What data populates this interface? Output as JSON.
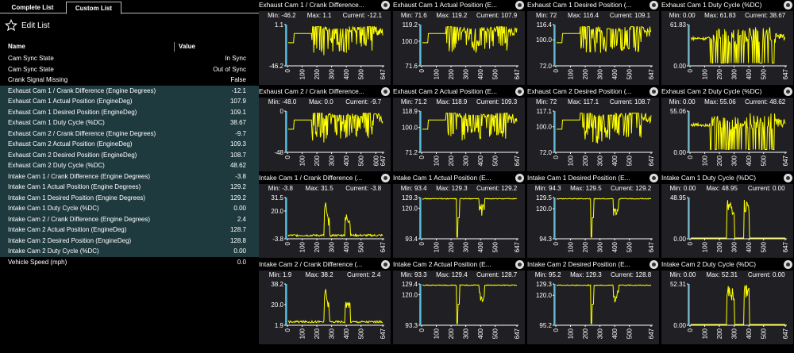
{
  "tabs": {
    "complete": "Complete List",
    "custom": "Custom List"
  },
  "edit_label": "Edit List",
  "columns": {
    "name": "Name",
    "value": "Value"
  },
  "rows": [
    {
      "name": "Cam Sync State",
      "value": "In Sync",
      "sel": false
    },
    {
      "name": "Cam Sync State",
      "value": "Out of Sync",
      "sel": false
    },
    {
      "name": "Crank Signal Missing",
      "value": "False",
      "sel": false
    },
    {
      "name": "Exhaust Cam 1 / Crank Difference (Engine Degrees)",
      "value": "-12.1",
      "sel": true
    },
    {
      "name": "Exhaust Cam 1 Actual Position (EngineDeg)",
      "value": "107.9",
      "sel": true
    },
    {
      "name": "Exhaust Cam 1 Desired Position (EngineDeg)",
      "value": "109.1",
      "sel": true
    },
    {
      "name": "Exhaust Cam 1 Duty Cycle (%DC)",
      "value": "38.67",
      "sel": true
    },
    {
      "name": "Exhaust Cam 2 / Crank Difference (Engine Degrees)",
      "value": "-9.7",
      "sel": true
    },
    {
      "name": "Exhaust Cam 2 Actual Position (EngineDeg)",
      "value": "109.3",
      "sel": true
    },
    {
      "name": "Exhaust Cam 2 Desired Position (EngineDeg)",
      "value": "108.7",
      "sel": true
    },
    {
      "name": "Exhaust Cam 2 Duty Cycle (%DC)",
      "value": "48.62",
      "sel": true
    },
    {
      "name": "Intake Cam 1 / Crank Difference (Engine Degrees)",
      "value": "-3.8",
      "sel": true
    },
    {
      "name": "Intake Cam 1 Actual Position (Engine Degrees)",
      "value": "129.2",
      "sel": true
    },
    {
      "name": "Intake Cam 1 Desired Position (Engine Degrees)",
      "value": "129.2",
      "sel": true
    },
    {
      "name": "Intake Cam 1 Duty Cycle (%DC)",
      "value": "0.00",
      "sel": true
    },
    {
      "name": "Intake Cam 2 / Crank Difference (Engine Degrees)",
      "value": "2.4",
      "sel": true
    },
    {
      "name": "Intake Cam 2 Actual Position (EngineDeg)",
      "value": "128.7",
      "sel": true
    },
    {
      "name": "Intake Cam 2 Desired Position (EngineDeg)",
      "value": "128.8",
      "sel": true
    },
    {
      "name": "Intake Cam 2 Duty Cycle (%DC)",
      "value": "0.00",
      "sel": true
    },
    {
      "name": "Vehicle Speed (mph)",
      "value": "0.0",
      "sel": false
    }
  ],
  "colors": {
    "trace": "#ffff00",
    "cursor": "#2aa6c8",
    "selected_row": "#1f3a3e",
    "plot_bg": "#202024"
  },
  "chart_data": [
    {
      "type": "line",
      "title": "Exhaust Cam 1 / Crank Difference...",
      "min": "-46.2",
      "max": "1.1",
      "current": "-12.1",
      "ylim": [
        -46.2,
        1.1
      ],
      "yticks": [
        "1.1",
        "-46.2"
      ],
      "yvals": [
        1.1,
        -46.2
      ],
      "xticks": [
        "0",
        "100",
        "200",
        "300",
        "400",
        "500",
        "647"
      ],
      "pattern": "exh_diff"
    },
    {
      "type": "line",
      "title": "Exhaust Cam 1 Actual Position (E...",
      "min": "71.6",
      "max": "119.2",
      "current": "107.9",
      "ylim": [
        71.6,
        119.2
      ],
      "yticks": [
        "119.2",
        "100.0",
        "71.6"
      ],
      "yvals": [
        119.2,
        100.0,
        71.6
      ],
      "xticks": [
        "0",
        "100",
        "200",
        "300",
        "400",
        "500",
        "647"
      ],
      "pattern": "exh_pos"
    },
    {
      "type": "line",
      "title": "Exhaust Cam 1 Desired Position (...",
      "min": "72",
      "max": "116.4",
      "current": "109.1",
      "ylim": [
        72,
        116.4
      ],
      "yticks": [
        "116.4",
        "100.0",
        "72.0"
      ],
      "yvals": [
        116.4,
        100.0,
        72.0
      ],
      "xticks": [
        "0",
        "100",
        "200",
        "300",
        "400",
        "500",
        "647"
      ],
      "pattern": "exh_pos"
    },
    {
      "type": "line",
      "title": "Exhaust Cam 1 Duty Cycle (%DC)",
      "min": "0.00",
      "max": "61.83",
      "current": "38.67",
      "ylim": [
        0,
        61.83
      ],
      "yticks": [
        "61.83",
        "0.00"
      ],
      "yvals": [
        61.83,
        0
      ],
      "xticks": [
        "0",
        "100",
        "200",
        "300",
        "400",
        "500",
        "647"
      ],
      "pattern": "exh_duty"
    },
    {
      "type": "line",
      "title": "Exhaust Cam 2 / Crank Difference...",
      "min": "-48.0",
      "max": "0.0",
      "current": "-9.7",
      "ylim": [
        -48.0,
        0.0
      ],
      "yticks": [
        "0",
        "-48"
      ],
      "yvals": [
        0,
        -48
      ],
      "xticks": [
        "0",
        "100",
        "200",
        "300",
        "400",
        "500",
        "600",
        "647"
      ],
      "pattern": "exh_diff"
    },
    {
      "type": "line",
      "title": "Exhaust Cam 2 Actual Position (E...",
      "min": "71.2",
      "max": "118.9",
      "current": "109.3",
      "ylim": [
        71.2,
        118.9
      ],
      "yticks": [
        "118.9",
        "100.0",
        "71.2"
      ],
      "yvals": [
        118.9,
        100.0,
        71.2
      ],
      "xticks": [
        "0",
        "100",
        "200",
        "300",
        "400",
        "500",
        "647"
      ],
      "pattern": "exh_pos"
    },
    {
      "type": "line",
      "title": "Exhaust Cam 2 Desired Position (...",
      "min": "72",
      "max": "117.1",
      "current": "108.7",
      "ylim": [
        72,
        117.1
      ],
      "yticks": [
        "117.1",
        "100.0",
        "72.0"
      ],
      "yvals": [
        117.1,
        100.0,
        72.0
      ],
      "xticks": [
        "0",
        "100",
        "200",
        "300",
        "400",
        "500",
        "647"
      ],
      "pattern": "exh_pos"
    },
    {
      "type": "line",
      "title": "Exhaust Cam 2 Duty Cycle (%DC)",
      "min": "0.00",
      "max": "55.06",
      "current": "48.62",
      "ylim": [
        0,
        55.06
      ],
      "yticks": [
        "55.06",
        "0.00"
      ],
      "yvals": [
        55.06,
        0
      ],
      "xticks": [
        "0",
        "100",
        "200",
        "300",
        "400",
        "500",
        "647"
      ],
      "pattern": "exh_duty"
    },
    {
      "type": "line",
      "title": "Intake Cam 1 / Crank Difference (...",
      "min": "-3.8",
      "max": "31.5",
      "current": "-3.8",
      "ylim": [
        -3.8,
        31.5
      ],
      "yticks": [
        "31.5",
        "20.0",
        "-3.8"
      ],
      "yvals": [
        31.5,
        20.0,
        -3.8
      ],
      "xticks": [
        "0",
        "100",
        "200",
        "300",
        "400",
        "500",
        "647"
      ],
      "pattern": "int_diff"
    },
    {
      "type": "line",
      "title": "Intake Cam 1 Actual Position (E...",
      "min": "93.4",
      "max": "129.3",
      "current": "129.2",
      "ylim": [
        93.4,
        129.3
      ],
      "yticks": [
        "129.3",
        "120.0",
        "93.4"
      ],
      "yvals": [
        129.3,
        120.0,
        93.4
      ],
      "xticks": [
        "0",
        "100",
        "200",
        "300",
        "400",
        "500",
        "647"
      ],
      "pattern": "int_pos"
    },
    {
      "type": "line",
      "title": "Intake Cam 1 Desired Position (E...",
      "min": "94.3",
      "max": "129.5",
      "current": "129.2",
      "ylim": [
        94.3,
        129.5
      ],
      "yticks": [
        "129.5",
        "120.0",
        "94.3"
      ],
      "yvals": [
        129.5,
        120.0,
        94.3
      ],
      "xticks": [
        "0",
        "100",
        "200",
        "300",
        "400",
        "500",
        "647"
      ],
      "pattern": "int_pos"
    },
    {
      "type": "line",
      "title": "Intake Cam 1 Duty Cycle (%DC)",
      "min": "0.00",
      "max": "48.95",
      "current": "0.00",
      "ylim": [
        0,
        48.95
      ],
      "yticks": [
        "48.95",
        "0.00"
      ],
      "yvals": [
        48.95,
        0
      ],
      "xticks": [
        "0",
        "100",
        "200",
        "300",
        "400",
        "500",
        "647"
      ],
      "pattern": "int_duty"
    },
    {
      "type": "line",
      "title": "Intake Cam 2 / Crank Difference (...",
      "min": "1.9",
      "max": "38.2",
      "current": "2.4",
      "ylim": [
        1.9,
        38.2
      ],
      "yticks": [
        "38.2",
        "20.0",
        "1.9"
      ],
      "yvals": [
        38.2,
        20.0,
        1.9
      ],
      "xticks": [
        "0",
        "100",
        "200",
        "300",
        "400",
        "500",
        "647"
      ],
      "pattern": "int_diff"
    },
    {
      "type": "line",
      "title": "Intake Cam 2 Actual Position (E...",
      "min": "93.3",
      "max": "129.4",
      "current": "128.7",
      "ylim": [
        93.3,
        129.4
      ],
      "yticks": [
        "129.4",
        "120.0",
        "93.3"
      ],
      "yvals": [
        129.4,
        120.0,
        93.3
      ],
      "xticks": [
        "0",
        "100",
        "200",
        "300",
        "400",
        "500",
        "647"
      ],
      "pattern": "int_pos"
    },
    {
      "type": "line",
      "title": "Intake Cam 2 Desired Position (E...",
      "min": "95.2",
      "max": "129.3",
      "current": "128.8",
      "ylim": [
        95.2,
        129.3
      ],
      "yticks": [
        "129.3",
        "120.0",
        "95.2"
      ],
      "yvals": [
        129.3,
        120.0,
        95.2
      ],
      "xticks": [
        "0",
        "100",
        "200",
        "300",
        "400",
        "500",
        "647"
      ],
      "pattern": "int_pos"
    },
    {
      "type": "line",
      "title": "Intake Cam 2 Duty Cycle (%DC)",
      "min": "0.00",
      "max": "52.31",
      "current": "0.00",
      "ylim": [
        0,
        52.31
      ],
      "yticks": [
        "52.31",
        "0.00"
      ],
      "yvals": [
        52.31,
        0
      ],
      "xticks": [
        "0",
        "100",
        "200",
        "300",
        "400",
        "500",
        "647"
      ],
      "pattern": "int_duty"
    }
  ]
}
